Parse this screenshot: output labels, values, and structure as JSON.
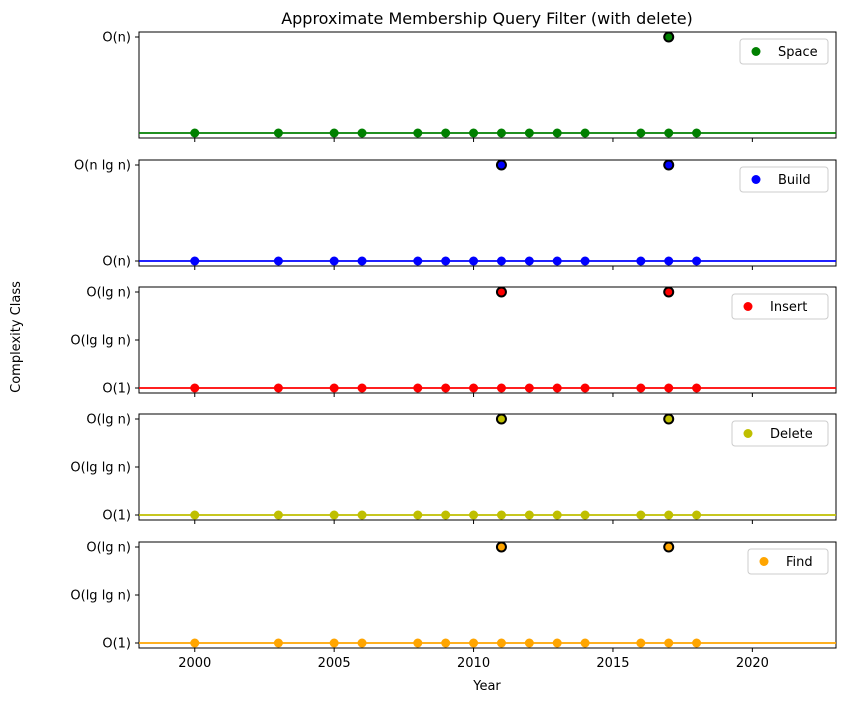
{
  "chart_data": {
    "type": "scatter",
    "title": "Approximate Membership Query Filter (with delete)",
    "xlabel": "Year",
    "ylabel": "Complexity Class",
    "xlim": [
      1998,
      2023
    ],
    "xticks": [
      "2000",
      "2005",
      "2010",
      "2015",
      "2020"
    ],
    "x": [
      2000,
      2003,
      2005,
      2006,
      2008,
      2009,
      2010,
      2011,
      2012,
      2013,
      2014,
      2016,
      2017,
      2018
    ],
    "legend_position": "top-right",
    "panels": [
      {
        "name": "Space",
        "color": "#008000",
        "yticks": [
          "O(n)"
        ],
        "levels": 2,
        "baseline_label": "",
        "baseline_level": 0,
        "values": [
          0,
          0,
          0,
          0,
          0,
          0,
          0,
          0,
          0,
          0,
          0,
          0,
          0,
          0
        ],
        "highlight": [
          {
            "x": 2017,
            "level": 1
          }
        ]
      },
      {
        "name": "Build",
        "color": "#0000ff",
        "yticks": [
          "O(n)",
          "O(n lg n)"
        ],
        "levels": 2,
        "values": [
          0,
          0,
          0,
          0,
          0,
          0,
          0,
          0,
          0,
          0,
          0,
          0,
          0,
          0
        ],
        "highlight": [
          {
            "x": 2011,
            "level": 1
          },
          {
            "x": 2017,
            "level": 1
          }
        ]
      },
      {
        "name": "Insert",
        "color": "#ff0000",
        "yticks": [
          "O(1)",
          "O(lg lg n)",
          "O(lg n)"
        ],
        "levels": 3,
        "values": [
          0,
          0,
          0,
          0,
          0,
          0,
          0,
          0,
          0,
          0,
          0,
          0,
          0,
          0
        ],
        "highlight": [
          {
            "x": 2011,
            "level": 2
          },
          {
            "x": 2017,
            "level": 2
          }
        ]
      },
      {
        "name": "Delete",
        "color": "#bfbf00",
        "yticks": [
          "O(1)",
          "O(lg lg n)",
          "O(lg n)"
        ],
        "levels": 3,
        "values": [
          0,
          0,
          0,
          0,
          0,
          0,
          0,
          0,
          0,
          0,
          0,
          0,
          0,
          0
        ],
        "highlight": [
          {
            "x": 2011,
            "level": 2
          },
          {
            "x": 2017,
            "level": 2
          }
        ]
      },
      {
        "name": "Find",
        "color": "#ffa500",
        "yticks": [
          "O(1)",
          "O(lg lg n)",
          "O(lg n)"
        ],
        "levels": 3,
        "values": [
          0,
          0,
          0,
          0,
          0,
          0,
          0,
          0,
          0,
          0,
          0,
          0,
          0,
          0
        ],
        "highlight": [
          {
            "x": 2011,
            "level": 2
          },
          {
            "x": 2017,
            "level": 2
          }
        ]
      }
    ]
  }
}
